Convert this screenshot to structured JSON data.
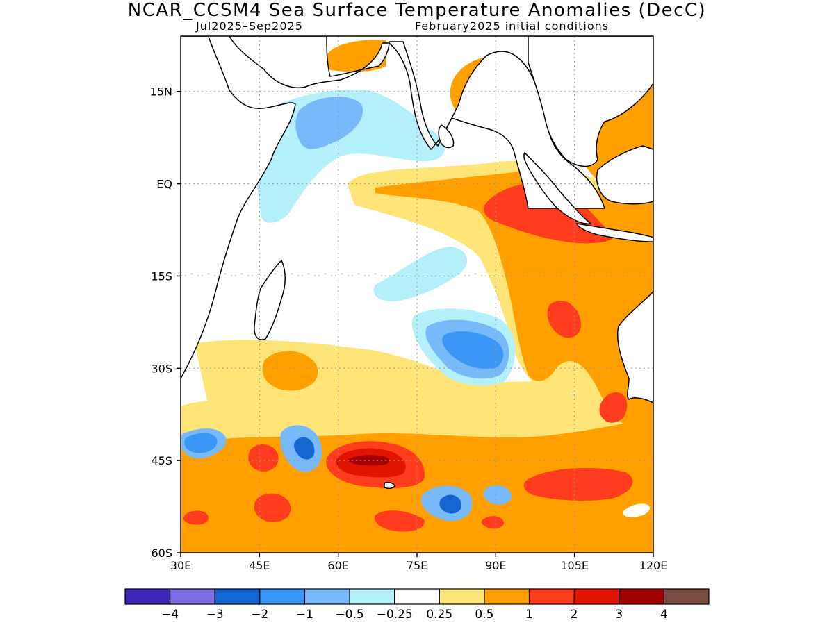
{
  "header": {
    "title": "NCAR_CCSM4 Sea Surface Temperature Anomalies (DecC)",
    "period": "Jul2025–Sep2025",
    "init": "February2025 initial conditions"
  },
  "map": {
    "lon_range": [
      30,
      120
    ],
    "lat_range": [
      -60,
      24
    ],
    "x_ticks": [
      {
        "value": 30,
        "label": "30E"
      },
      {
        "value": 45,
        "label": "45E"
      },
      {
        "value": 60,
        "label": "60E"
      },
      {
        "value": 75,
        "label": "75E"
      },
      {
        "value": 90,
        "label": "90E"
      },
      {
        "value": 105,
        "label": "105E"
      },
      {
        "value": 120,
        "label": "120E"
      }
    ],
    "y_ticks": [
      {
        "value": 15,
        "label": "15N"
      },
      {
        "value": 0,
        "label": "EQ"
      },
      {
        "value": -15,
        "label": "15S"
      },
      {
        "value": -30,
        "label": "30S"
      },
      {
        "value": -45,
        "label": "45S"
      },
      {
        "value": -60,
        "label": "60S"
      }
    ],
    "grid": "dotted"
  },
  "colorbar": {
    "colors": [
      "#3c28b4",
      "#7d6ee6",
      "#1464d2",
      "#3c96f5",
      "#78b9fa",
      "#b4f0fa",
      "#ffffff",
      "#ffe578",
      "#ffa000",
      "#ff3c1e",
      "#e11400",
      "#a50000",
      "#784c3f"
    ],
    "labels": [
      "−4",
      "−3",
      "−2",
      "−1",
      "−0.5",
      "−0.25",
      "0.25",
      "0.5",
      "1",
      "2",
      "3",
      "4"
    ]
  }
}
